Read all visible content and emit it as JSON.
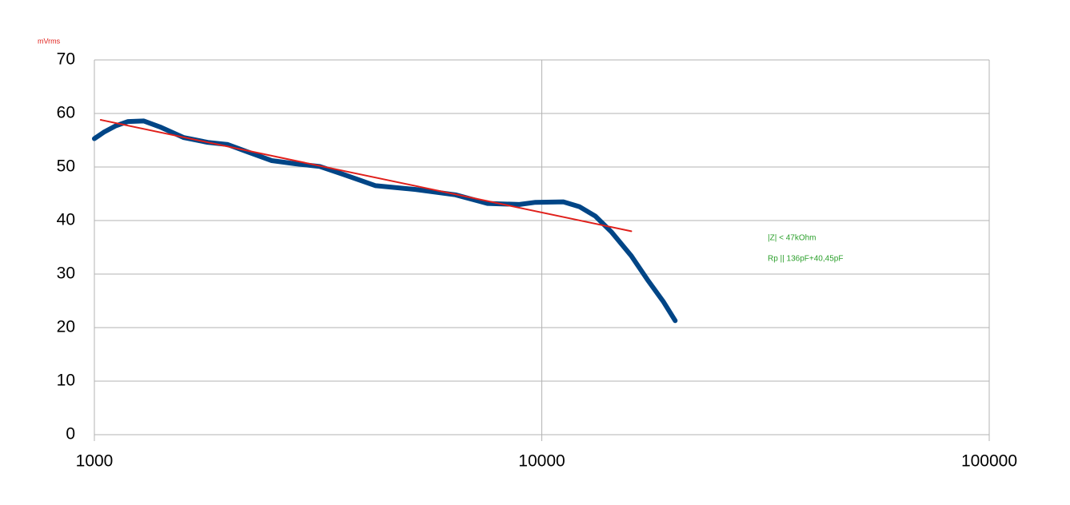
{
  "chart_data": {
    "type": "line",
    "y_label": "mVrms",
    "annotations": [
      "|Z| < 47kOhm",
      "Rp || 136pF+40,45pF"
    ],
    "x_scale": "log",
    "xlim": [
      1000,
      100000
    ],
    "xticks": [
      1000,
      10000,
      100000
    ],
    "ylim": [
      0,
      70
    ],
    "yticks": [
      0,
      10,
      20,
      30,
      40,
      50,
      60,
      70
    ],
    "grid": true,
    "series": [
      {
        "color": "#004586",
        "width": 6,
        "x": [
          1000,
          1050,
          1117,
          1189,
          1290,
          1401,
          1585,
          1793,
          1987,
          2203,
          2491,
          2818,
          3189,
          3607,
          4252,
          5223,
          6415,
          7560,
          8913,
          9676,
          11175,
          12130,
          13180,
          14300,
          15850,
          17210,
          18680,
          19870
        ],
        "values": [
          55.3,
          56.5,
          57.7,
          58.5,
          58.6,
          57.5,
          55.5,
          54.6,
          54.2,
          52.8,
          51.2,
          50.6,
          50.1,
          48.6,
          46.5,
          45.8,
          44.8,
          43.2,
          43.0,
          43.4,
          43.5,
          42.6,
          40.8,
          37.9,
          33.4,
          29.0,
          24.9,
          21.3
        ]
      },
      {
        "color": "#e0201b",
        "width": 2,
        "x": [
          1033,
          15850
        ],
        "values": [
          58.8,
          38.0
        ]
      }
    ]
  }
}
